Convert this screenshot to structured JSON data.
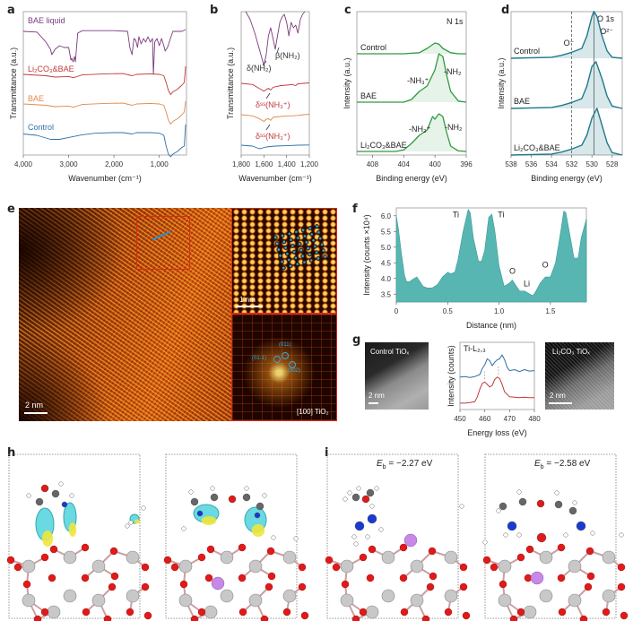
{
  "panels": {
    "a": "a",
    "b": "b",
    "c": "c",
    "d": "d",
    "e": "e",
    "f": "f",
    "g": "g",
    "h": "h",
    "i": "i"
  },
  "colors": {
    "bae_liquid": "#7b3a7e",
    "li2co3_bae": "#c0393b",
    "bae": "#e08a4a",
    "control": "#2f6fa8",
    "xps_green": "#2e9a3e",
    "xps_teal": "#1f7a8c",
    "profile_fill": "#58b6b2"
  },
  "chart_data": [
    {
      "id": "a",
      "type": "line",
      "xlabel": "Wavenumber (cm⁻¹)",
      "ylabel": "Transmittance (a.u.)",
      "xlim": [
        4000,
        400
      ],
      "xticks": [
        "4,000",
        "3,000",
        "2,000",
        "1,000"
      ],
      "xtick_values": [
        4000,
        3000,
        2000,
        1000
      ],
      "series": [
        {
          "name": "BAE liquid",
          "color": "#7b3a7e",
          "offset": 3.0,
          "x": [
            4000,
            3700,
            3500,
            3400,
            3370,
            3300,
            3200,
            3100,
            3000,
            2950,
            2930,
            2900,
            2870,
            2850,
            2800,
            2700,
            2000,
            1700,
            1650,
            1600,
            1560,
            1520,
            1480,
            1450,
            1400,
            1350,
            1300,
            1250,
            1200,
            1150,
            1130,
            1100,
            1050,
            1000,
            950,
            900,
            870,
            820,
            700,
            500,
            420
          ],
          "y": [
            0.9,
            0.88,
            0.6,
            0.4,
            0.25,
            0.4,
            0.5,
            0.45,
            0.45,
            0.1,
            0.15,
            0.05,
            0.2,
            0.05,
            0.85,
            0.92,
            0.92,
            0.9,
            0.45,
            0.25,
            0.7,
            0.65,
            0.45,
            0.75,
            0.55,
            0.7,
            0.6,
            0.75,
            0.6,
            0.7,
            -0.3,
            0.6,
            0.7,
            0.5,
            0.7,
            0.5,
            0.35,
            0.45,
            0.9,
            0.9,
            0.95
          ]
        },
        {
          "name": "Li₂CO₃&BAE",
          "color": "#c0393b",
          "offset": 2.0,
          "x": [
            4000,
            3500,
            3300,
            3000,
            2900,
            2850,
            2700,
            2200,
            1800,
            1600,
            1500,
            1200,
            1000,
            900,
            850,
            800,
            750,
            700,
            600,
            500,
            450,
            420
          ],
          "y": [
            0.9,
            0.85,
            0.8,
            0.82,
            0.78,
            0.8,
            0.88,
            0.92,
            0.93,
            0.85,
            0.9,
            0.92,
            0.9,
            0.85,
            0.6,
            0.3,
            0.15,
            0.25,
            0.35,
            0.5,
            0.6,
            1.2
          ]
        },
        {
          "name": "BAE",
          "color": "#e08a4a",
          "offset": 1.0,
          "x": [
            4000,
            3500,
            3300,
            3000,
            2900,
            2850,
            2700,
            2200,
            1800,
            1600,
            1500,
            1200,
            1000,
            900,
            850,
            800,
            750,
            700,
            600,
            500,
            450,
            420
          ],
          "y": [
            0.9,
            0.85,
            0.8,
            0.82,
            0.78,
            0.8,
            0.88,
            0.92,
            0.93,
            0.85,
            0.9,
            0.92,
            0.9,
            0.85,
            0.6,
            0.3,
            0.15,
            0.25,
            0.35,
            0.5,
            0.6,
            1.0
          ]
        },
        {
          "name": "Control",
          "color": "#2f6fa8",
          "offset": 0.0,
          "x": [
            4000,
            3700,
            3400,
            3200,
            3000,
            2700,
            2400,
            2000,
            1800,
            1600,
            1500,
            1200,
            1000,
            900,
            850,
            800,
            750,
            700,
            600,
            500,
            450,
            420
          ],
          "y": [
            0.85,
            0.8,
            0.65,
            0.65,
            0.72,
            0.82,
            0.88,
            0.9,
            0.9,
            0.85,
            0.9,
            0.9,
            0.88,
            0.8,
            0.4,
            0.1,
            0.0,
            0.1,
            0.2,
            0.35,
            0.4,
            1.2
          ]
        }
      ]
    },
    {
      "id": "b",
      "type": "line",
      "xlabel": "Wavenumber (cm⁻¹)",
      "ylabel": "Transmittance (a.u.)",
      "xlim": [
        1800,
        1200
      ],
      "xticks": [
        "1,800",
        "1,600",
        "1,400",
        "1,200"
      ],
      "xtick_values": [
        1800,
        1600,
        1400,
        1200
      ],
      "annotations": [
        "δ(NH₂)",
        "β(NH₂)",
        "δˢˢ(NH₃⁺)",
        "δˢˢ(NH₃⁺)"
      ],
      "series": [
        {
          "name": "BAE liquid",
          "color": "#7b3a7e",
          "x": [
            1760,
            1720,
            1680,
            1640,
            1600,
            1580,
            1560,
            1540,
            1520,
            1500,
            1480,
            1460,
            1440,
            1420,
            1400,
            1380,
            1360,
            1340,
            1320,
            1300,
            1280,
            1260,
            1240
          ],
          "y": [
            1.0,
            0.85,
            0.6,
            0.3,
            0.0,
            0.2,
            0.55,
            0.7,
            0.5,
            0.3,
            0.55,
            0.8,
            0.9,
            0.95,
            0.8,
            0.55,
            0.8,
            0.7,
            0.75,
            0.6,
            0.85,
            0.95,
            1.0
          ]
        },
        {
          "name": "Li₂CO₃&BAE",
          "color": "#c0393b",
          "x": [
            1800,
            1700,
            1650,
            1600,
            1580,
            1560,
            1540,
            1520,
            1500,
            1450,
            1400,
            1350,
            1320,
            1300,
            1250,
            1200
          ],
          "y": [
            0.6,
            0.55,
            0.4,
            0.25,
            0.32,
            0.38,
            0.3,
            0.42,
            0.45,
            0.5,
            0.52,
            0.55,
            0.5,
            0.58,
            0.6,
            0.62
          ]
        },
        {
          "name": "BAE",
          "color": "#e08a4a",
          "x": [
            1800,
            1700,
            1650,
            1600,
            1580,
            1560,
            1540,
            1520,
            1500,
            1450,
            1400,
            1350,
            1300,
            1250,
            1200
          ],
          "y": [
            0.6,
            0.55,
            0.45,
            0.3,
            0.4,
            0.42,
            0.35,
            0.48,
            0.5,
            0.52,
            0.55,
            0.55,
            0.57,
            0.6,
            0.62
          ]
        },
        {
          "name": "Control",
          "color": "#2f6fa8",
          "x": [
            1800,
            1700,
            1640,
            1620,
            1580,
            1500,
            1400,
            1300,
            1200
          ],
          "y": [
            0.55,
            0.5,
            0.35,
            0.38,
            0.45,
            0.5,
            0.52,
            0.55,
            0.56
          ]
        }
      ]
    },
    {
      "id": "c",
      "type": "line",
      "title": "N 1s",
      "xlabel": "Binding energy (eV)",
      "ylabel": "Intensity (a.u.)",
      "xlim": [
        410,
        396
      ],
      "xticks": [
        "408",
        "404",
        "400",
        "396"
      ],
      "xtick_values": [
        408,
        404,
        400,
        396
      ],
      "annotations": [
        "-NH₃⁺",
        "-NH₂",
        "-NH₃⁺",
        "-NH₂"
      ],
      "series": [
        {
          "name": "Control",
          "color": "#2e9a3e",
          "x": [
            410,
            404,
            402,
            401,
            400,
            399.5,
            399,
            398,
            397,
            396
          ],
          "y": [
            0,
            0,
            0.02,
            0.1,
            0.2,
            0.18,
            0.1,
            0.02,
            0,
            0
          ]
        },
        {
          "name": "BAE",
          "color": "#2e9a3e",
          "x": [
            410,
            404,
            403,
            402,
            401,
            400,
            399.5,
            399,
            398.5,
            398,
            397,
            396
          ],
          "y": [
            0,
            0,
            0.05,
            0.2,
            0.3,
            0.6,
            0.9,
            0.85,
            0.5,
            0.2,
            0.02,
            0
          ]
        },
        {
          "name": "Li₂CO₃&BAE",
          "color": "#2e9a3e",
          "x": [
            410,
            405,
            404,
            403,
            402,
            401,
            400.3,
            400,
            399.5,
            399,
            398.5,
            398,
            397,
            396
          ],
          "y": [
            0,
            0,
            0.03,
            0.15,
            0.3,
            0.4,
            0.65,
            0.6,
            0.7,
            0.65,
            0.35,
            0.1,
            0.01,
            0
          ]
        }
      ]
    },
    {
      "id": "d",
      "type": "line",
      "title": "O 1s",
      "xlabel": "Binding energy (eV)",
      "ylabel": "Intensity (a.u.)",
      "xlim": [
        538,
        527
      ],
      "xticks": [
        "538",
        "536",
        "534",
        "532",
        "530",
        "528"
      ],
      "xtick_values": [
        538,
        536,
        534,
        532,
        530,
        528
      ],
      "vlines": [
        532,
        529.8
      ],
      "annotations": [
        "O⁻",
        "O²⁻"
      ],
      "series": [
        {
          "name": "Control",
          "color": "#1f7a8c",
          "x": [
            538,
            534,
            533,
            532,
            531,
            530.5,
            530,
            529.8,
            529.5,
            529,
            528.5,
            528,
            527
          ],
          "y": [
            0,
            0.02,
            0.06,
            0.12,
            0.2,
            0.45,
            0.85,
            0.95,
            0.85,
            0.45,
            0.15,
            0.02,
            0
          ]
        },
        {
          "name": "BAE",
          "color": "#1f7a8c",
          "x": [
            538,
            534,
            533,
            532,
            531,
            530.5,
            530,
            529.6,
            529,
            528.5,
            528,
            527
          ],
          "y": [
            0,
            0.02,
            0.06,
            0.12,
            0.2,
            0.45,
            0.85,
            0.95,
            0.6,
            0.25,
            0.05,
            0
          ]
        },
        {
          "name": "Li₂CO₃&BAE",
          "color": "#1f7a8c",
          "x": [
            538,
            534,
            533,
            532,
            531,
            530.5,
            530,
            529.5,
            529,
            528.5,
            528,
            527
          ],
          "y": [
            0,
            0.02,
            0.06,
            0.12,
            0.2,
            0.4,
            0.75,
            0.95,
            0.6,
            0.25,
            0.05,
            0
          ]
        }
      ]
    },
    {
      "id": "f",
      "type": "area",
      "xlabel": "Distance (nm)",
      "ylabel": "Intensity (counts ×10⁴)",
      "xlim": [
        0,
        1.85
      ],
      "ylim": [
        3.25,
        6.25
      ],
      "xticks": [
        "0",
        "0.5",
        "1.0",
        "1.5"
      ],
      "xtick_values": [
        0,
        0.5,
        1.0,
        1.5
      ],
      "yticks": [
        "3.5",
        "4.0",
        "4.5",
        "5.0",
        "5.5",
        "6.0"
      ],
      "ytick_values": [
        3.5,
        4.0,
        4.5,
        5.0,
        5.5,
        6.0
      ],
      "annotations": [
        {
          "text": "Ti",
          "x": 0.58,
          "y": 5.95
        },
        {
          "text": "Ti",
          "x": 1.02,
          "y": 5.95
        },
        {
          "text": "O",
          "x": 1.13,
          "y": 4.15
        },
        {
          "text": "Li",
          "x": 1.27,
          "y": 3.75
        },
        {
          "text": "O",
          "x": 1.45,
          "y": 4.35
        }
      ],
      "x": [
        0,
        0.02,
        0.05,
        0.08,
        0.1,
        0.13,
        0.15,
        0.2,
        0.23,
        0.26,
        0.3,
        0.35,
        0.4,
        0.45,
        0.5,
        0.53,
        0.57,
        0.6,
        0.65,
        0.7,
        0.72,
        0.75,
        0.8,
        0.83,
        0.86,
        0.9,
        0.93,
        0.96,
        1.0,
        1.05,
        1.1,
        1.13,
        1.16,
        1.2,
        1.25,
        1.3,
        1.33,
        1.36,
        1.4,
        1.45,
        1.5,
        1.55,
        1.6,
        1.63,
        1.65,
        1.7,
        1.73,
        1.77,
        1.8,
        1.85
      ],
      "y": [
        6.0,
        5.6,
        4.8,
        4.1,
        3.9,
        3.9,
        3.95,
        4.05,
        3.9,
        3.75,
        3.7,
        3.7,
        3.8,
        4.05,
        4.2,
        4.15,
        4.2,
        4.6,
        5.5,
        6.2,
        6.1,
        5.3,
        4.55,
        4.55,
        4.9,
        5.95,
        6.05,
        5.5,
        4.4,
        3.75,
        3.85,
        3.95,
        3.8,
        3.6,
        3.6,
        3.5,
        3.45,
        3.6,
        3.85,
        4.05,
        4.05,
        4.5,
        5.5,
        6.15,
        6.1,
        5.2,
        4.65,
        4.65,
        5.3,
        5.9
      ]
    },
    {
      "id": "g",
      "type": "line",
      "xlabel": "Energy loss (eV)",
      "ylabel": "Intensity (counts)",
      "title": "Ti-L₂,₃",
      "xlim": [
        450,
        480
      ],
      "xticks": [
        "450",
        "460",
        "470",
        "480"
      ],
      "xtick_values": [
        450,
        460,
        470,
        480
      ],
      "series": [
        {
          "name": "Control TiOₓ",
          "color": "#2f6fa8",
          "x": [
            450,
            452,
            454,
            456,
            458,
            459,
            460,
            461,
            462,
            463,
            464,
            465,
            466,
            467,
            468,
            469,
            470,
            472,
            474,
            476,
            478,
            480
          ],
          "y": [
            0.55,
            0.56,
            0.54,
            0.56,
            0.6,
            0.72,
            0.8,
            0.92,
            0.88,
            0.78,
            0.85,
            0.9,
            0.92,
            1.0,
            0.9,
            0.75,
            0.68,
            0.7,
            0.66,
            0.7,
            0.67,
            0.68
          ]
        },
        {
          "name": "Li₂CO₃ TiOₓ",
          "color": "#c0393b",
          "x": [
            450,
            452,
            454,
            456,
            457,
            458,
            459,
            460,
            461,
            462,
            463,
            464,
            465,
            466,
            467,
            468,
            470,
            472,
            474,
            476,
            478,
            480
          ],
          "y": [
            0.02,
            0.02,
            0.03,
            0.05,
            0.15,
            0.3,
            0.42,
            0.45,
            0.4,
            0.35,
            0.38,
            0.5,
            0.55,
            0.52,
            0.4,
            0.25,
            0.15,
            0.14,
            0.13,
            0.14,
            0.13,
            0.13
          ]
        }
      ]
    }
  ],
  "labels": {
    "a": {
      "series": [
        "BAE liquid",
        "Li₂CO₃&BAE",
        "BAE",
        "Control"
      ]
    },
    "c": {
      "series": [
        "Control",
        "BAE",
        "Li₂CO₃&BAE"
      ]
    },
    "d": {
      "series": [
        "Control",
        "BAE",
        "Li₂CO₃&BAE"
      ]
    },
    "e": {
      "scalebar_main": "2 nm",
      "scalebar_inset": "1 nm",
      "fft_label": "[100] TiO₂",
      "fft_indices": [
        "(011)",
        "(01-1)",
        "(002)"
      ]
    },
    "g": {
      "left_image": "Control TiOₓ",
      "right_image": "Li₂CO₃ TiOₓ",
      "scalebar_left": "2 nm",
      "scalebar_right": "2 nm"
    },
    "i": {
      "eb_left": "Eₙ = −2.27 eV",
      "eb_left_sym": "E",
      "eb_left_sub": "b",
      "eb_left_val": " = −2.27 eV",
      "eb_right_sym": "E",
      "eb_right_sub": "b",
      "eb_right_val": " = −2.58 eV"
    }
  }
}
